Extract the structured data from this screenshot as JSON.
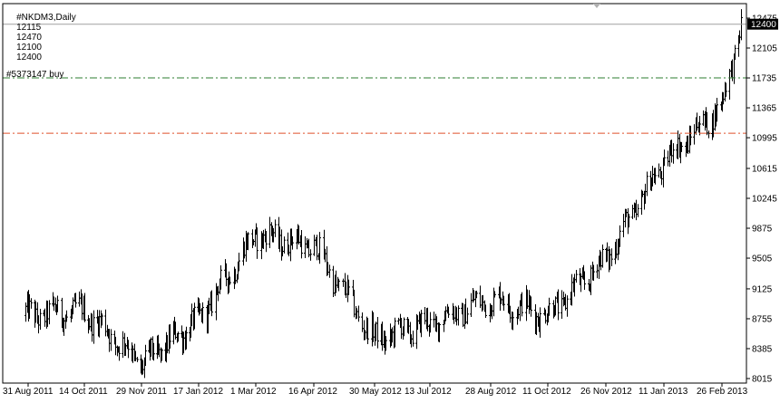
{
  "header": {
    "symbol": "#NKDM3,Daily",
    "open": "12115",
    "high": "12470",
    "low": "12100",
    "close": "12400"
  },
  "order": {
    "label": "#5373147 buy",
    "price": 11735,
    "color": "#2e7d32"
  },
  "stop_level": {
    "price": 11050,
    "color": "#e0522b"
  },
  "price_marker": {
    "label": "12400",
    "value": 12400
  },
  "chart_data": {
    "type": "ohlc",
    "title": "",
    "xlabel": "",
    "ylabel": "",
    "ylim": [
      8015,
      12475
    ],
    "y_ticks": [
      12475,
      12105,
      11735,
      11365,
      10995,
      10615,
      10245,
      9875,
      9505,
      9125,
      8755,
      8385,
      8015
    ],
    "x_ticks": [
      "31 Aug 2011",
      "14 Oct 2011",
      "29 Nov 2011",
      "17 Jan 2012",
      "1 Mar 2012",
      "16 Apr 2012",
      "30 May 2012",
      "13 Jul 2012",
      "28 Aug 2012",
      "11 Oct 2012",
      "26 Nov 2012",
      "11 Jan 2013",
      "26 Feb 2013"
    ],
    "grid": false,
    "legend": "none",
    "anchors": [
      {
        "x": "31 Aug 2011",
        "y": 8800
      },
      {
        "x": "14 Oct 2011",
        "y": 8850
      },
      {
        "x": "29 Nov 2011",
        "y": 8200
      },
      {
        "x": "17 Jan 2012",
        "y": 8750
      },
      {
        "x": "1 Mar 2012",
        "y": 9800
      },
      {
        "x": "16 Apr 2012",
        "y": 9650
      },
      {
        "x": "30 May 2012",
        "y": 8500
      },
      {
        "x": "13 Jul 2012",
        "y": 8700
      },
      {
        "x": "28 Aug 2012",
        "y": 9000
      },
      {
        "x": "11 Oct 2012",
        "y": 8800
      },
      {
        "x": "26 Nov 2012",
        "y": 9500
      },
      {
        "x": "11 Jan 2013",
        "y": 10700
      },
      {
        "x": "26 Feb 2013",
        "y": 11400
      },
      {
        "x": "13 Mar 2013",
        "y": 12400
      }
    ]
  },
  "colors": {
    "bars": "#000000",
    "axis": "#000000",
    "top_line": "#a0a0a0"
  }
}
